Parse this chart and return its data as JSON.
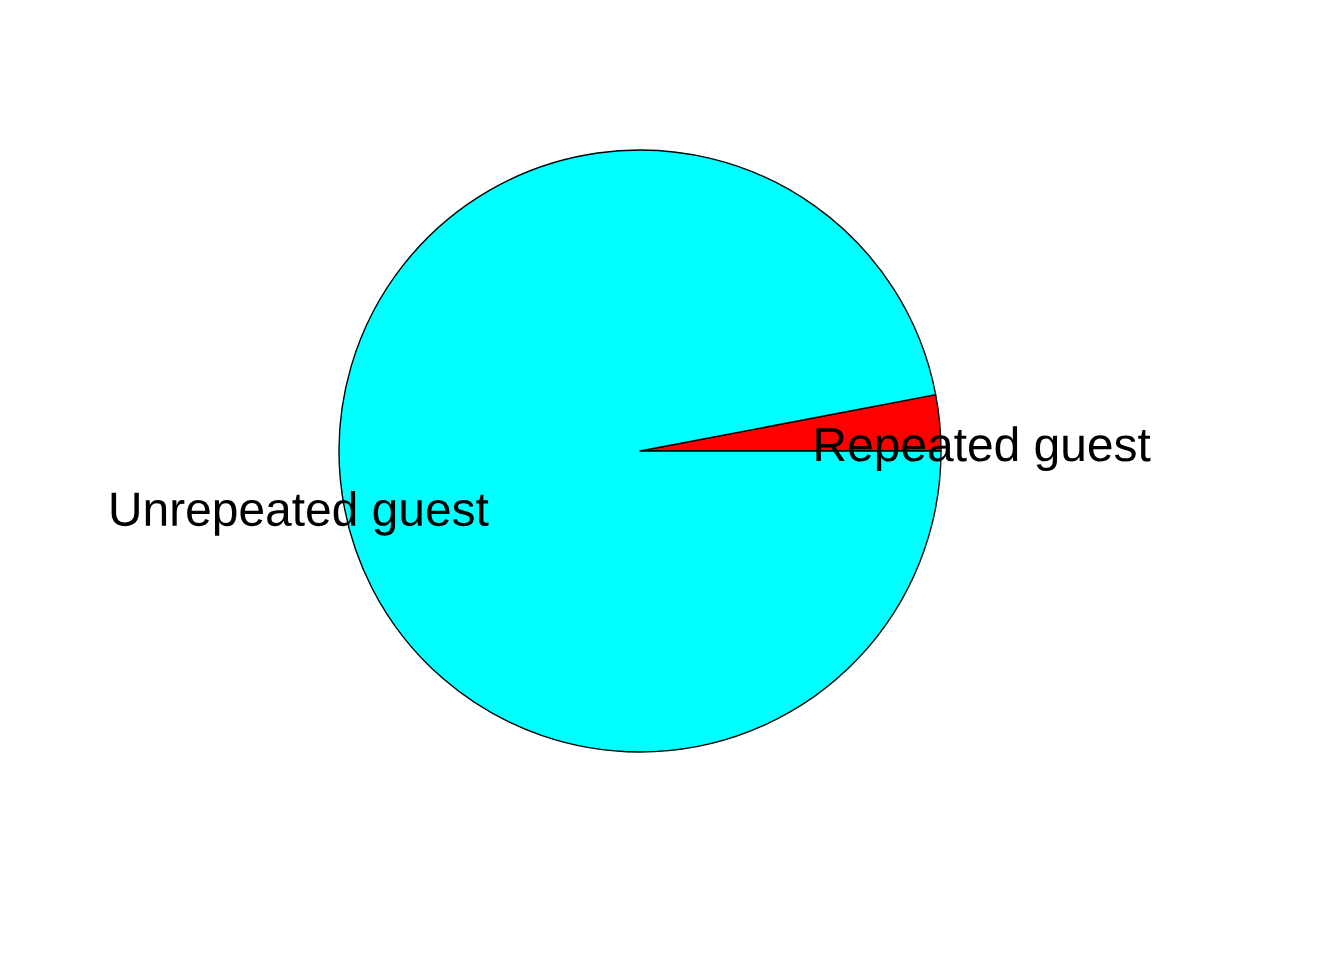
{
  "chart_data": {
    "type": "pie",
    "categories": [
      "Repeated guest",
      "Unrepeated guest"
    ],
    "values": [
      3,
      97
    ],
    "colors": [
      "#ff0000",
      "#00ffff"
    ]
  }
}
